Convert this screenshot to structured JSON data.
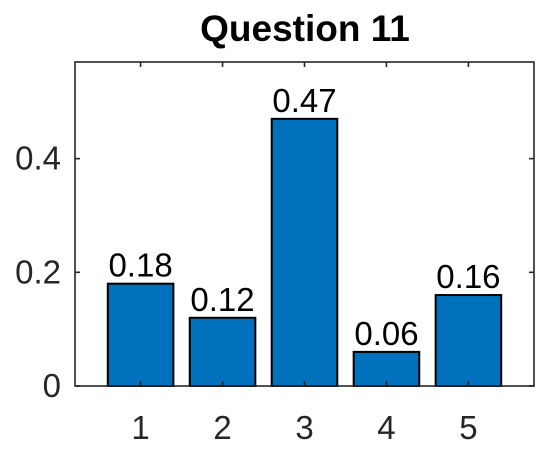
{
  "chart_data": {
    "type": "bar",
    "title": "Question 11",
    "categories": [
      "1",
      "2",
      "3",
      "4",
      "5"
    ],
    "values": [
      0.18,
      0.12,
      0.47,
      0.06,
      0.16
    ],
    "data_labels": [
      "0.18",
      "0.12",
      "0.47",
      "0.06",
      "0.16"
    ],
    "yticks": [
      0,
      0.2,
      0.4
    ],
    "ytick_labels": [
      "0",
      "0.2",
      "0.4"
    ],
    "ylim": [
      0,
      0.57
    ],
    "xlabel": "",
    "ylabel": "",
    "grid": false,
    "legend": "none",
    "bar_color": "#0072BD"
  }
}
